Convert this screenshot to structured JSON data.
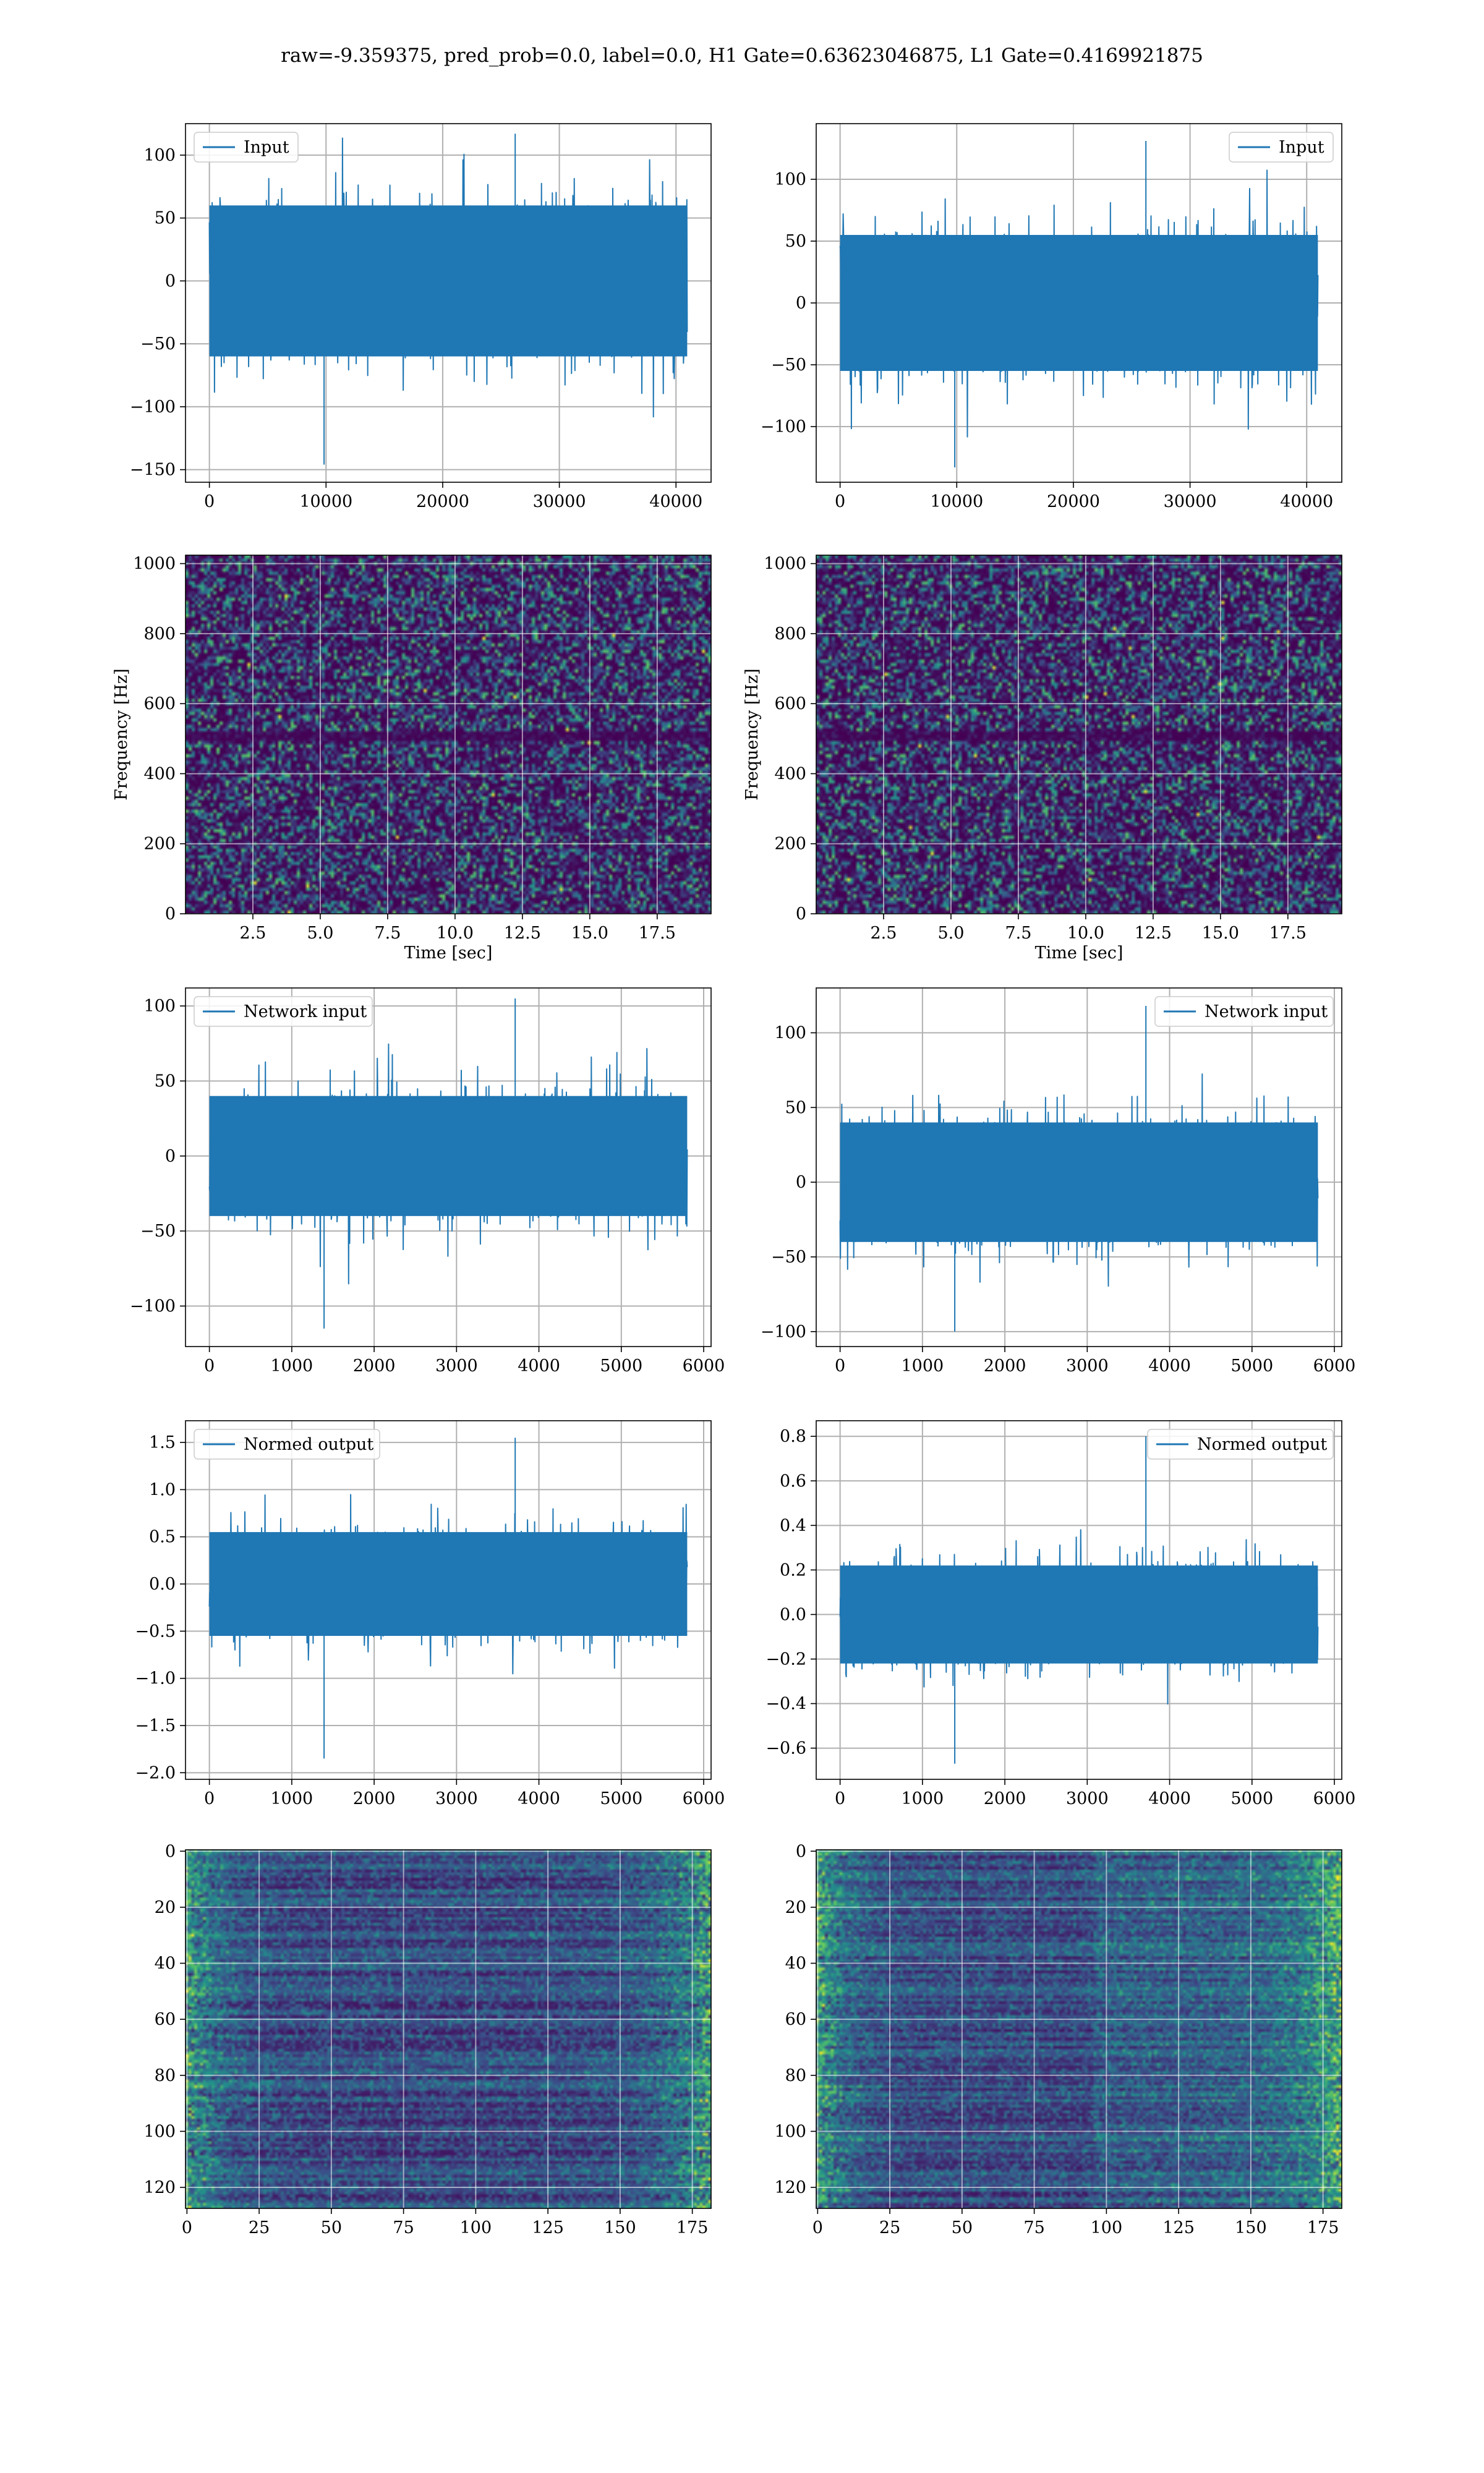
{
  "figure": {
    "title": "raw=-9.359375, pred_prob=0.0, label=0.0, H1 Gate=0.63623046875, L1 Gate=0.4169921875",
    "colors": {
      "line": "#1f77b4",
      "grid": "#b0b0b0",
      "spine": "#000000",
      "legend_border": "#cccccc",
      "viridis_low": "#440154",
      "viridis_mid": "#21918c",
      "viridis_high": "#fde725"
    }
  },
  "chart_data": [
    {
      "id": "input-h1",
      "type": "line",
      "row": 0,
      "col": 0,
      "legend": "Input",
      "legend_loc": "upper left",
      "xlim": [
        -2048,
        43008
      ],
      "ylim": [
        -160,
        125
      ],
      "xticks": [
        0,
        10000,
        20000,
        30000,
        40000
      ],
      "xtick_labels": [
        "0",
        "10000",
        "20000",
        "30000",
        "40000"
      ],
      "yticks": [
        -150,
        -100,
        -50,
        0,
        50,
        100
      ],
      "ytick_labels": [
        "−150",
        "−100",
        "−50",
        "0",
        "50",
        "100"
      ],
      "grid": true,
      "signal": {
        "x_start": 0,
        "x_end": 40960,
        "band": [
          -60,
          60
        ],
        "extreme_min": -146,
        "extreme_max": 117
      }
    },
    {
      "id": "input-l1",
      "type": "line",
      "row": 0,
      "col": 1,
      "legend": "Input",
      "legend_loc": "upper right",
      "xlim": [
        -2048,
        43008
      ],
      "ylim": [
        -145,
        145
      ],
      "xticks": [
        0,
        10000,
        20000,
        30000,
        40000
      ],
      "xtick_labels": [
        "0",
        "10000",
        "20000",
        "30000",
        "40000"
      ],
      "yticks": [
        -100,
        -50,
        0,
        50,
        100
      ],
      "ytick_labels": [
        "−100",
        "−50",
        "0",
        "50",
        "100"
      ],
      "grid": true,
      "signal": {
        "x_start": 0,
        "x_end": 40960,
        "band": [
          -55,
          55
        ],
        "extreme_min": -133,
        "extreme_max": 131
      }
    },
    {
      "id": "spectrogram-h1",
      "type": "heatmap",
      "row": 1,
      "col": 0,
      "xlabel": "Time [sec]",
      "ylabel": "Frequency [Hz]",
      "xlim": [
        0,
        19.5
      ],
      "ylim": [
        0,
        1024
      ],
      "xticks": [
        2.5,
        5.0,
        7.5,
        10.0,
        12.5,
        15.0,
        17.5
      ],
      "xtick_labels": [
        "2.5",
        "5.0",
        "7.5",
        "10.0",
        "12.5",
        "15.0",
        "17.5"
      ],
      "yticks": [
        0,
        200,
        400,
        600,
        800,
        1000
      ],
      "ytick_labels": [
        "0",
        "200",
        "400",
        "600",
        "800",
        "1000"
      ],
      "grid": true,
      "colormap": "viridis"
    },
    {
      "id": "spectrogram-l1",
      "type": "heatmap",
      "row": 1,
      "col": 1,
      "xlabel": "Time [sec]",
      "ylabel": "Frequency [Hz]",
      "xlim": [
        0,
        19.5
      ],
      "ylim": [
        0,
        1024
      ],
      "xticks": [
        2.5,
        5.0,
        7.5,
        10.0,
        12.5,
        15.0,
        17.5
      ],
      "xtick_labels": [
        "2.5",
        "5.0",
        "7.5",
        "10.0",
        "12.5",
        "15.0",
        "17.5"
      ],
      "yticks": [
        0,
        200,
        400,
        600,
        800,
        1000
      ],
      "ytick_labels": [
        "0",
        "200",
        "400",
        "600",
        "800",
        "1000"
      ],
      "grid": true,
      "colormap": "viridis"
    },
    {
      "id": "network-input-h1",
      "type": "line",
      "row": 2,
      "col": 0,
      "legend": "Network input",
      "legend_loc": "upper left",
      "xlim": [
        -290,
        6090
      ],
      "ylim": [
        -127,
        112
      ],
      "xticks": [
        0,
        1000,
        2000,
        3000,
        4000,
        5000,
        6000
      ],
      "xtick_labels": [
        "0",
        "1000",
        "2000",
        "3000",
        "4000",
        "5000",
        "6000"
      ],
      "yticks": [
        -100,
        -50,
        0,
        50,
        100
      ],
      "ytick_labels": [
        "−100",
        "−50",
        "0",
        "50",
        "100"
      ],
      "grid": true,
      "signal": {
        "x_start": 0,
        "x_end": 5800,
        "band": [
          -40,
          40
        ],
        "extreme_min": -115,
        "extreme_max": 105
      }
    },
    {
      "id": "network-input-l1",
      "type": "line",
      "row": 2,
      "col": 1,
      "legend": "Network input",
      "legend_loc": "upper right",
      "xlim": [
        -290,
        6090
      ],
      "ylim": [
        -110,
        130
      ],
      "xticks": [
        0,
        1000,
        2000,
        3000,
        4000,
        5000,
        6000
      ],
      "xtick_labels": [
        "0",
        "1000",
        "2000",
        "3000",
        "4000",
        "5000",
        "6000"
      ],
      "yticks": [
        -100,
        -50,
        0,
        50,
        100
      ],
      "ytick_labels": [
        "−100",
        "−50",
        "0",
        "50",
        "100"
      ],
      "grid": true,
      "signal": {
        "x_start": 0,
        "x_end": 5800,
        "band": [
          -40,
          40
        ],
        "extreme_min": -100,
        "extreme_max": 118
      }
    },
    {
      "id": "normed-output-h1",
      "type": "line",
      "row": 3,
      "col": 0,
      "legend": "Normed output",
      "legend_loc": "upper left",
      "xlim": [
        -290,
        6090
      ],
      "ylim": [
        -2.07,
        1.73
      ],
      "xticks": [
        0,
        1000,
        2000,
        3000,
        4000,
        5000,
        6000
      ],
      "xtick_labels": [
        "0",
        "1000",
        "2000",
        "3000",
        "4000",
        "5000",
        "6000"
      ],
      "yticks": [
        -2.0,
        -1.5,
        -1.0,
        -0.5,
        0.0,
        0.5,
        1.0,
        1.5
      ],
      "ytick_labels": [
        "−2.0",
        "−1.5",
        "−1.0",
        "−0.5",
        "0.0",
        "0.5",
        "1.0",
        "1.5"
      ],
      "grid": true,
      "signal": {
        "x_start": 0,
        "x_end": 5800,
        "band": [
          -0.55,
          0.55
        ],
        "extreme_min": -1.85,
        "extreme_max": 1.55
      }
    },
    {
      "id": "normed-output-l1",
      "type": "line",
      "row": 3,
      "col": 1,
      "legend": "Normed output",
      "legend_loc": "upper right",
      "xlim": [
        -290,
        6090
      ],
      "ylim": [
        -0.74,
        0.87
      ],
      "xticks": [
        0,
        1000,
        2000,
        3000,
        4000,
        5000,
        6000
      ],
      "xtick_labels": [
        "0",
        "1000",
        "2000",
        "3000",
        "4000",
        "5000",
        "6000"
      ],
      "yticks": [
        -0.6,
        -0.4,
        -0.2,
        0.0,
        0.2,
        0.4,
        0.6,
        0.8
      ],
      "ytick_labels": [
        "−0.6",
        "−0.4",
        "−0.2",
        "0.0",
        "0.2",
        "0.4",
        "0.6",
        "0.8"
      ],
      "grid": true,
      "signal": {
        "x_start": 0,
        "x_end": 5800,
        "band": [
          -0.22,
          0.22
        ],
        "extreme_min": -0.67,
        "extreme_max": 0.8
      }
    },
    {
      "id": "feature-map-h1",
      "type": "heatmap",
      "row": 4,
      "col": 0,
      "xlim": [
        -0.5,
        181.5
      ],
      "ylim": [
        127.5,
        -0.5
      ],
      "xticks": [
        0,
        25,
        50,
        75,
        100,
        125,
        150,
        175
      ],
      "xtick_labels": [
        "0",
        "25",
        "50",
        "75",
        "100",
        "125",
        "150",
        "175"
      ],
      "yticks": [
        0,
        20,
        40,
        60,
        80,
        100,
        120
      ],
      "ytick_labels": [
        "0",
        "20",
        "40",
        "60",
        "80",
        "100",
        "120"
      ],
      "grid": true,
      "colormap": "viridis"
    },
    {
      "id": "feature-map-l1",
      "type": "heatmap",
      "row": 4,
      "col": 1,
      "xlim": [
        -0.5,
        181.5
      ],
      "ylim": [
        127.5,
        -0.5
      ],
      "xticks": [
        0,
        25,
        50,
        75,
        100,
        125,
        150,
        175
      ],
      "xtick_labels": [
        "0",
        "25",
        "50",
        "75",
        "100",
        "125",
        "150",
        "175"
      ],
      "yticks": [
        0,
        20,
        40,
        60,
        80,
        100,
        120
      ],
      "ytick_labels": [
        "0",
        "20",
        "40",
        "60",
        "80",
        "100",
        "120"
      ],
      "grid": true,
      "colormap": "viridis"
    }
  ]
}
